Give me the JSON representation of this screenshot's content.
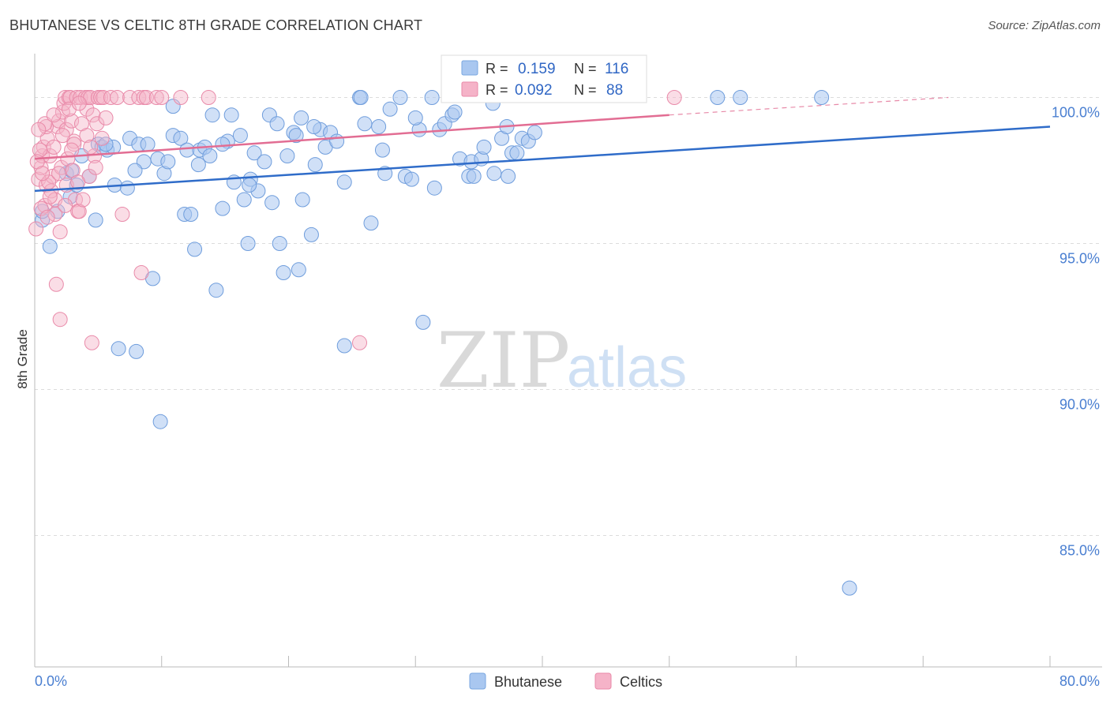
{
  "header": {
    "title": "BHUTANESE VS CELTIC 8TH GRADE CORRELATION CHART",
    "source": "Source: ZipAtlas.com"
  },
  "watermark": {
    "zip": "ZIP",
    "atlas": "atlas"
  },
  "legend_box": {
    "rows": [
      {
        "r_label": "R =",
        "r_value": "0.159",
        "n_label": "N =",
        "n_value": "116"
      },
      {
        "r_label": "R =",
        "r_value": "0.092",
        "n_label": "N =",
        "n_value": "88"
      }
    ]
  },
  "bottom_legend": {
    "items": [
      "Bhutanese",
      "Celtics"
    ]
  },
  "chart_data": {
    "type": "scatter",
    "title": "BHUTANESE VS CELTIC 8TH GRADE CORRELATION CHART",
    "xlabel": "",
    "ylabel": "8th Grade",
    "xlim": [
      0,
      80
    ],
    "ylim": [
      80.5,
      101.5
    ],
    "x_tick_labels": [
      "0.0%",
      "80.0%"
    ],
    "y_ticks": [
      85,
      90,
      95,
      100
    ],
    "y_tick_labels": [
      "85.0%",
      "90.0%",
      "95.0%",
      "100.0%"
    ],
    "grid": true,
    "colors": {
      "Bhutanese": "#a9c7f0",
      "Bhutanese_line": "#2f6cc9",
      "Celtics": "#f5b3c8",
      "Celtics_line": "#e26d93"
    },
    "series": [
      {
        "name": "Bhutanese",
        "R": 0.159,
        "N": 116,
        "trend": {
          "x": [
            0,
            80
          ],
          "y": [
            96.8,
            99.0
          ]
        },
        "points": [
          [
            0.6,
            95.8
          ],
          [
            0.6,
            96.1
          ],
          [
            1.2,
            94.9
          ],
          [
            1.8,
            96.1
          ],
          [
            2.5,
            97.4
          ],
          [
            2.8,
            96.6
          ],
          [
            2.9,
            97.5
          ],
          [
            3.3,
            97.0
          ],
          [
            3.7,
            98.0
          ],
          [
            4.3,
            97.3
          ],
          [
            4.8,
            95.8
          ],
          [
            5.0,
            98.4
          ],
          [
            5.3,
            98.3
          ],
          [
            5.7,
            98.2
          ],
          [
            6.2,
            98.3
          ],
          [
            6.3,
            97.0
          ],
          [
            6.6,
            91.4
          ],
          [
            7.3,
            96.9
          ],
          [
            7.5,
            98.6
          ],
          [
            8.0,
            91.3
          ],
          [
            8.2,
            98.4
          ],
          [
            8.6,
            97.8
          ],
          [
            8.9,
            98.4
          ],
          [
            9.3,
            93.8
          ],
          [
            9.7,
            97.9
          ],
          [
            9.9,
            88.9
          ],
          [
            10.2,
            97.4
          ],
          [
            10.5,
            97.8
          ],
          [
            10.9,
            99.7
          ],
          [
            10.9,
            98.7
          ],
          [
            11.5,
            98.6
          ],
          [
            11.8,
            96.0
          ],
          [
            12.0,
            98.2
          ],
          [
            12.3,
            96.0
          ],
          [
            12.6,
            94.8
          ],
          [
            13.0,
            98.2
          ],
          [
            13.4,
            98.3
          ],
          [
            13.8,
            98.0
          ],
          [
            14.0,
            99.4
          ],
          [
            14.3,
            93.4
          ],
          [
            14.8,
            96.2
          ],
          [
            15.2,
            98.5
          ],
          [
            15.5,
            99.4
          ],
          [
            15.7,
            97.1
          ],
          [
            16.2,
            98.7
          ],
          [
            16.5,
            96.5
          ],
          [
            16.8,
            95.0
          ],
          [
            17.0,
            97.2
          ],
          [
            17.3,
            98.1
          ],
          [
            17.6,
            96.8
          ],
          [
            18.1,
            97.8
          ],
          [
            18.5,
            99.4
          ],
          [
            18.7,
            96.4
          ],
          [
            19.1,
            99.1
          ],
          [
            19.3,
            95.0
          ],
          [
            19.6,
            94.0
          ],
          [
            19.9,
            98.0
          ],
          [
            20.4,
            98.8
          ],
          [
            20.6,
            98.7
          ],
          [
            20.8,
            94.1
          ],
          [
            21.1,
            96.5
          ],
          [
            21.8,
            95.3
          ],
          [
            22.1,
            97.7
          ],
          [
            22.5,
            98.9
          ],
          [
            22.9,
            98.3
          ],
          [
            23.3,
            98.8
          ],
          [
            23.8,
            98.5
          ],
          [
            24.4,
            97.1
          ],
          [
            25.6,
            100.0
          ],
          [
            25.7,
            100.0
          ],
          [
            26.5,
            95.7
          ],
          [
            27.1,
            99.0
          ],
          [
            27.4,
            98.2
          ],
          [
            27.6,
            97.4
          ],
          [
            28.8,
            100.0
          ],
          [
            29.2,
            97.3
          ],
          [
            29.7,
            97.2
          ],
          [
            30.3,
            98.9
          ],
          [
            30.6,
            92.3
          ],
          [
            31.3,
            100.0
          ],
          [
            31.5,
            96.9
          ],
          [
            31.9,
            98.9
          ],
          [
            32.3,
            99.1
          ],
          [
            32.9,
            99.4
          ],
          [
            33.5,
            97.9
          ],
          [
            34.2,
            97.3
          ],
          [
            34.4,
            97.8
          ],
          [
            34.6,
            97.3
          ],
          [
            35.2,
            97.9
          ],
          [
            35.4,
            98.3
          ],
          [
            36.2,
            97.4
          ],
          [
            36.8,
            98.6
          ],
          [
            37.3,
            97.3
          ],
          [
            37.6,
            98.1
          ],
          [
            38.0,
            98.1
          ],
          [
            38.4,
            98.6
          ],
          [
            38.9,
            98.5
          ],
          [
            21.0,
            99.3
          ],
          [
            22.0,
            99.0
          ],
          [
            30.0,
            99.3
          ],
          [
            53.8,
            100.0
          ],
          [
            55.6,
            100.0
          ],
          [
            62.0,
            100.0
          ],
          [
            64.2,
            83.2
          ],
          [
            24.4,
            91.5
          ],
          [
            36.1,
            99.8
          ],
          [
            39.4,
            98.8
          ],
          [
            28.0,
            99.6
          ],
          [
            33.1,
            99.5
          ],
          [
            37.2,
            99.0
          ],
          [
            5.6,
            98.4
          ],
          [
            14.8,
            98.4
          ],
          [
            16.9,
            97.0
          ],
          [
            7.9,
            97.5
          ],
          [
            12.9,
            97.7
          ],
          [
            26.0,
            99.1
          ]
        ]
      },
      {
        "name": "Celtics",
        "R": 0.092,
        "N": 88,
        "trend": {
          "x": [
            0,
            50
          ],
          "y": [
            97.9,
            99.4
          ]
        },
        "trend_extension": {
          "x": [
            50,
            72
          ],
          "y": [
            99.4,
            100.0
          ]
        },
        "points": [
          [
            0.1,
            95.5
          ],
          [
            0.3,
            97.2
          ],
          [
            0.5,
            97.6
          ],
          [
            0.6,
            98.0
          ],
          [
            0.7,
            98.3
          ],
          [
            0.8,
            96.3
          ],
          [
            0.9,
            97.0
          ],
          [
            1.0,
            98.6
          ],
          [
            1.2,
            98.0
          ],
          [
            1.3,
            96.8
          ],
          [
            1.4,
            97.3
          ],
          [
            1.5,
            98.3
          ],
          [
            1.6,
            96.5
          ],
          [
            1.7,
            93.6
          ],
          [
            1.8,
            99.0
          ],
          [
            1.9,
            99.2
          ],
          [
            2.0,
            92.4
          ],
          [
            2.1,
            97.6
          ],
          [
            2.2,
            99.5
          ],
          [
            2.3,
            99.8
          ],
          [
            2.4,
            100.0
          ],
          [
            2.5,
            98.9
          ],
          [
            2.6,
            97.9
          ],
          [
            2.7,
            100.0
          ],
          [
            2.8,
            100.0
          ],
          [
            2.9,
            99.2
          ],
          [
            3.0,
            97.5
          ],
          [
            3.1,
            98.5
          ],
          [
            3.2,
            96.5
          ],
          [
            3.3,
            100.0
          ],
          [
            3.4,
            96.1
          ],
          [
            3.5,
            96.1
          ],
          [
            3.6,
            100.0
          ],
          [
            3.8,
            96.5
          ],
          [
            4.0,
            100.0
          ],
          [
            4.1,
            99.6
          ],
          [
            4.2,
            100.0
          ],
          [
            4.3,
            97.3
          ],
          [
            4.4,
            100.0
          ],
          [
            4.5,
            91.6
          ],
          [
            4.6,
            99.4
          ],
          [
            4.7,
            98.0
          ],
          [
            4.9,
            99.1
          ],
          [
            5.0,
            100.0
          ],
          [
            5.2,
            100.0
          ],
          [
            5.4,
            100.0
          ],
          [
            5.6,
            99.3
          ],
          [
            6.0,
            100.0
          ],
          [
            6.5,
            100.0
          ],
          [
            6.9,
            96.0
          ],
          [
            7.5,
            100.0
          ],
          [
            8.2,
            100.0
          ],
          [
            8.4,
            94.0
          ],
          [
            8.6,
            100.0
          ],
          [
            8.8,
            100.0
          ],
          [
            9.6,
            100.0
          ],
          [
            10.0,
            100.0
          ],
          [
            11.5,
            100.0
          ],
          [
            13.7,
            100.0
          ],
          [
            25.6,
            91.6
          ],
          [
            50.4,
            100.0
          ],
          [
            0.4,
            98.2
          ],
          [
            0.9,
            99.0
          ],
          [
            1.1,
            97.1
          ],
          [
            1.6,
            96.0
          ],
          [
            2.0,
            95.4
          ],
          [
            2.5,
            97.0
          ],
          [
            3.1,
            98.4
          ],
          [
            3.7,
            99.1
          ],
          [
            0.2,
            97.8
          ],
          [
            0.5,
            96.2
          ],
          [
            1.2,
            96.6
          ],
          [
            1.9,
            97.4
          ],
          [
            2.4,
            96.3
          ],
          [
            2.9,
            98.2
          ],
          [
            3.4,
            97.1
          ],
          [
            4.1,
            98.7
          ],
          [
            4.8,
            97.6
          ],
          [
            5.3,
            98.6
          ],
          [
            0.8,
            99.1
          ],
          [
            1.5,
            99.4
          ],
          [
            2.2,
            98.7
          ],
          [
            2.7,
            99.6
          ],
          [
            3.5,
            99.8
          ],
          [
            4.4,
            98.3
          ],
          [
            0.3,
            98.9
          ],
          [
            0.6,
            97.4
          ],
          [
            1.0,
            95.9
          ]
        ]
      }
    ]
  }
}
